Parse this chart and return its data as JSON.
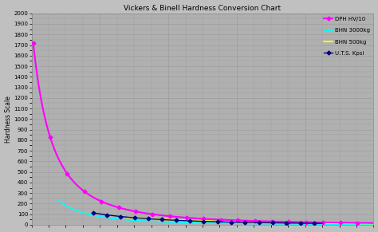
{
  "title": "Vickers & Binell Hardness Conversion Chart",
  "ylabel": "Hardness Scale",
  "ylim": [
    0,
    2000
  ],
  "xlim": [
    0,
    100
  ],
  "yticks": [
    0,
    100,
    200,
    300,
    400,
    500,
    600,
    700,
    800,
    900,
    1000,
    1100,
    1200,
    1300,
    1400,
    1500,
    1600,
    1700,
    1800,
    1900,
    2000
  ],
  "background_color": "#c0c0c0",
  "plot_bg_color": "#b0b0b0",
  "grid_color": "#999999",
  "series": {
    "uts": {
      "label": "U.T.S. Kpsi",
      "color": "#000080",
      "marker": "D",
      "markersize": 2.5,
      "linewidth": 1.0
    },
    "dph": {
      "label": "DPH HV/10",
      "color": "#ff00ff",
      "marker": "D",
      "markersize": 2.5,
      "linewidth": 1.5
    },
    "bhn500": {
      "label": "BHN 500kg",
      "color": "#ffff00",
      "marker": "D",
      "markersize": 2.5,
      "linewidth": 1.5
    },
    "bhn3000": {
      "label": "BHN 3000kg",
      "color": "#00ffff",
      "marker": "none",
      "markersize": 2.5,
      "linewidth": 1.2
    }
  }
}
